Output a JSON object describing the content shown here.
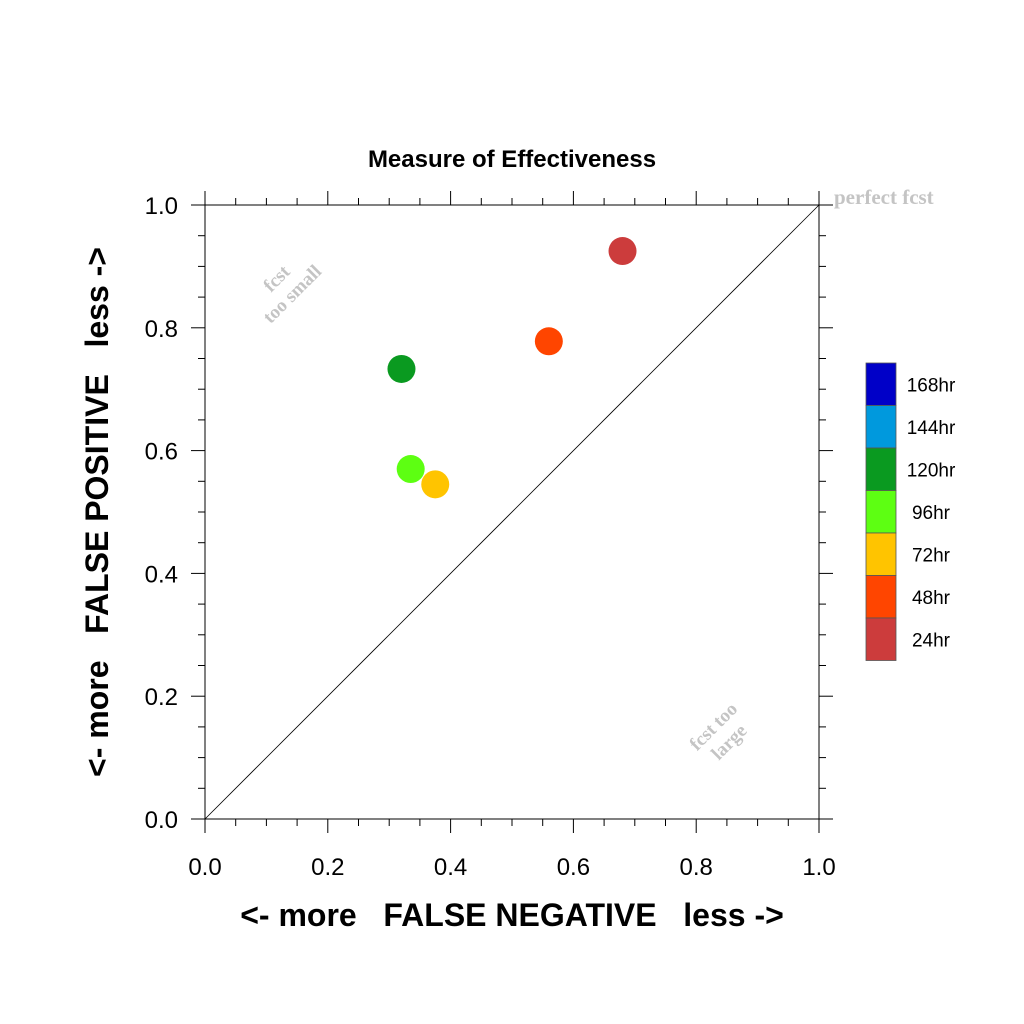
{
  "chart_data": {
    "type": "scatter",
    "title": "Measure of Effectiveness",
    "xlabel": "<- more   FALSE NEGATIVE   less ->",
    "ylabel": "<- more   FALSE POSITIVE   less ->",
    "xlim": [
      0.0,
      1.0
    ],
    "ylim": [
      0.0,
      1.0
    ],
    "x_ticks": [
      "0.0",
      "0.2",
      "0.4",
      "0.6",
      "0.8",
      "1.0"
    ],
    "y_ticks": [
      "0.0",
      "0.2",
      "0.4",
      "0.6",
      "0.8",
      "1.0"
    ],
    "grid": false,
    "diagonal_line": true,
    "annotations": {
      "perfect": "perfect fcst",
      "too_small_line1": "fcst",
      "too_small_line2": "too small",
      "too_large_line1": "fcst too",
      "too_large_line2": "large"
    },
    "legend_placement": "right",
    "legend": [
      {
        "label": "168hr",
        "color": "#0000c8"
      },
      {
        "label": "144hr",
        "color": "#0099dd"
      },
      {
        "label": "120hr",
        "color": "#0a9a20"
      },
      {
        "label": "96hr",
        "color": "#5dff12"
      },
      {
        "label": "72hr",
        "color": "#ffc400"
      },
      {
        "label": "48hr",
        "color": "#ff4500"
      },
      {
        "label": "24hr",
        "color": "#cc3c3c"
      }
    ],
    "points": [
      {
        "lead": "24hr",
        "x": 0.68,
        "y": 0.925,
        "color": "#cc3c3c"
      },
      {
        "lead": "48hr",
        "x": 0.56,
        "y": 0.778,
        "color": "#ff4500"
      },
      {
        "lead": "120hr",
        "x": 0.32,
        "y": 0.733,
        "color": "#0a9a20"
      },
      {
        "lead": "96hr",
        "x": 0.335,
        "y": 0.57,
        "color": "#5dff12"
      },
      {
        "lead": "72hr",
        "x": 0.375,
        "y": 0.545,
        "color": "#ffc400"
      }
    ]
  }
}
